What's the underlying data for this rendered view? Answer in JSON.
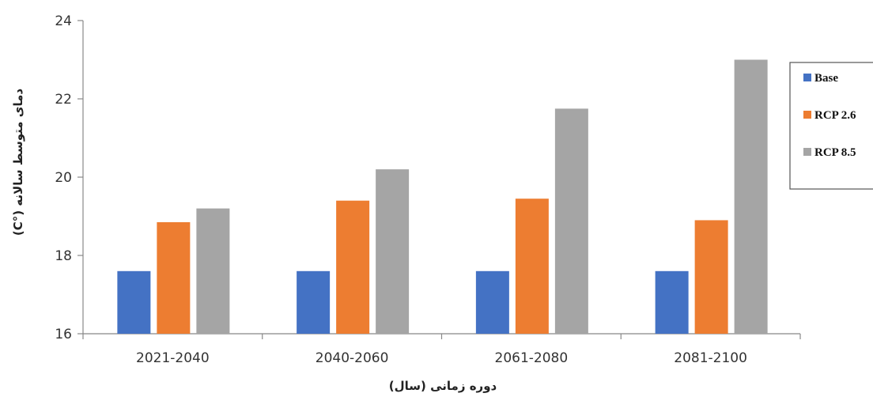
{
  "chart_data": {
    "type": "bar",
    "categories": [
      "2021-2040",
      "2040-2060",
      "2061-2080",
      "2081-2100"
    ],
    "series": [
      {
        "name": "Base",
        "color": "#4472c4",
        "values": [
          17.6,
          17.6,
          17.6,
          17.6
        ]
      },
      {
        "name": "RCP 2.6",
        "color": "#ed7d31",
        "values": [
          18.85,
          19.4,
          19.45,
          18.9
        ]
      },
      {
        "name": "RCP 8.5",
        "color": "#a5a5a5",
        "values": [
          19.2,
          20.2,
          21.75,
          23.0
        ]
      }
    ],
    "xlabel": "دوره زمانی (سال)",
    "ylabel": "دمای متوسط سالانه (°C)",
    "ylim": [
      16,
      24
    ],
    "yticks": [
      "16",
      "18",
      "20",
      "22",
      "24"
    ],
    "grid": false,
    "legend_position": "right"
  }
}
